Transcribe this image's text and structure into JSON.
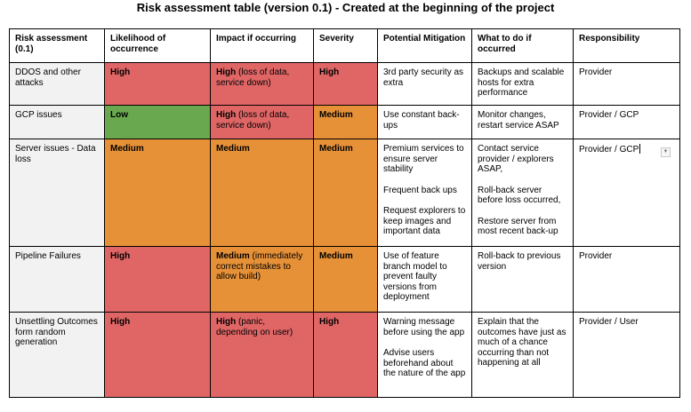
{
  "title": "Risk assessment table (version 0.1) - Created at the beginning of the project",
  "headers": {
    "risk": "Risk assessment (0.1)",
    "likelihood": "Likelihood of occurrence",
    "impact": "Impact if occurring",
    "severity": "Severity",
    "mitigation": "Potential Mitigation",
    "action": "What to do if occurred",
    "responsibility": "Responsibility"
  },
  "colors": {
    "high": "#e06666",
    "medium": "#e69138",
    "low": "#6aa84f",
    "first_column": "#f2f2f2"
  },
  "rows": [
    {
      "risk": "DDOS and other attacks",
      "likelihood": "High",
      "impact_level": "High",
      "impact_note": " (loss of data, service down)",
      "severity": "High",
      "mitigation": [
        "3rd party security as extra"
      ],
      "action": [
        "Backups and scalable hosts for extra performance"
      ],
      "responsibility": "Provider"
    },
    {
      "risk": "GCP issues",
      "likelihood": "Low",
      "impact_level": "High",
      "impact_note": " (loss of data, service down)",
      "severity": "Medium",
      "mitigation": [
        "Use constant back-ups"
      ],
      "action": [
        "Monitor changes, restart service ASAP"
      ],
      "responsibility": "Provider / GCP"
    },
    {
      "risk": "Server issues - Data loss",
      "likelihood": "Medium",
      "impact_level": "Medium",
      "impact_note": "",
      "severity": "Medium",
      "mitigation": [
        "Premium services to ensure server stability",
        "Frequent back ups",
        "Request explorers to keep images and important data"
      ],
      "action": [
        "Contact service provider / explorers ASAP,",
        "Roll-back server before loss occurred,",
        "Restore server from most recent back-up"
      ],
      "responsibility": "Provider / GCP"
    },
    {
      "risk": "Pipeline Failures",
      "likelihood": "High",
      "impact_level": "Medium",
      "impact_note": " (immediately correct mistakes to allow build)",
      "severity": "Medium",
      "mitigation": [
        "Use of feature branch model to prevent faulty versions from deployment"
      ],
      "action": [
        "Roll-back to previous version"
      ],
      "responsibility": "Provider"
    },
    {
      "risk": "Unsettling Outcomes form random generation",
      "likelihood": "High",
      "impact_level": "High",
      "impact_note": " (panic, depending on user)",
      "severity": "High",
      "mitigation": [
        "Warning message before using the app",
        "Advise users beforehand about the nature of the app"
      ],
      "action": [
        "Explain that the outcomes have just as much of a chance occurring than not happening at all"
      ],
      "responsibility": "Provider / User"
    }
  ]
}
